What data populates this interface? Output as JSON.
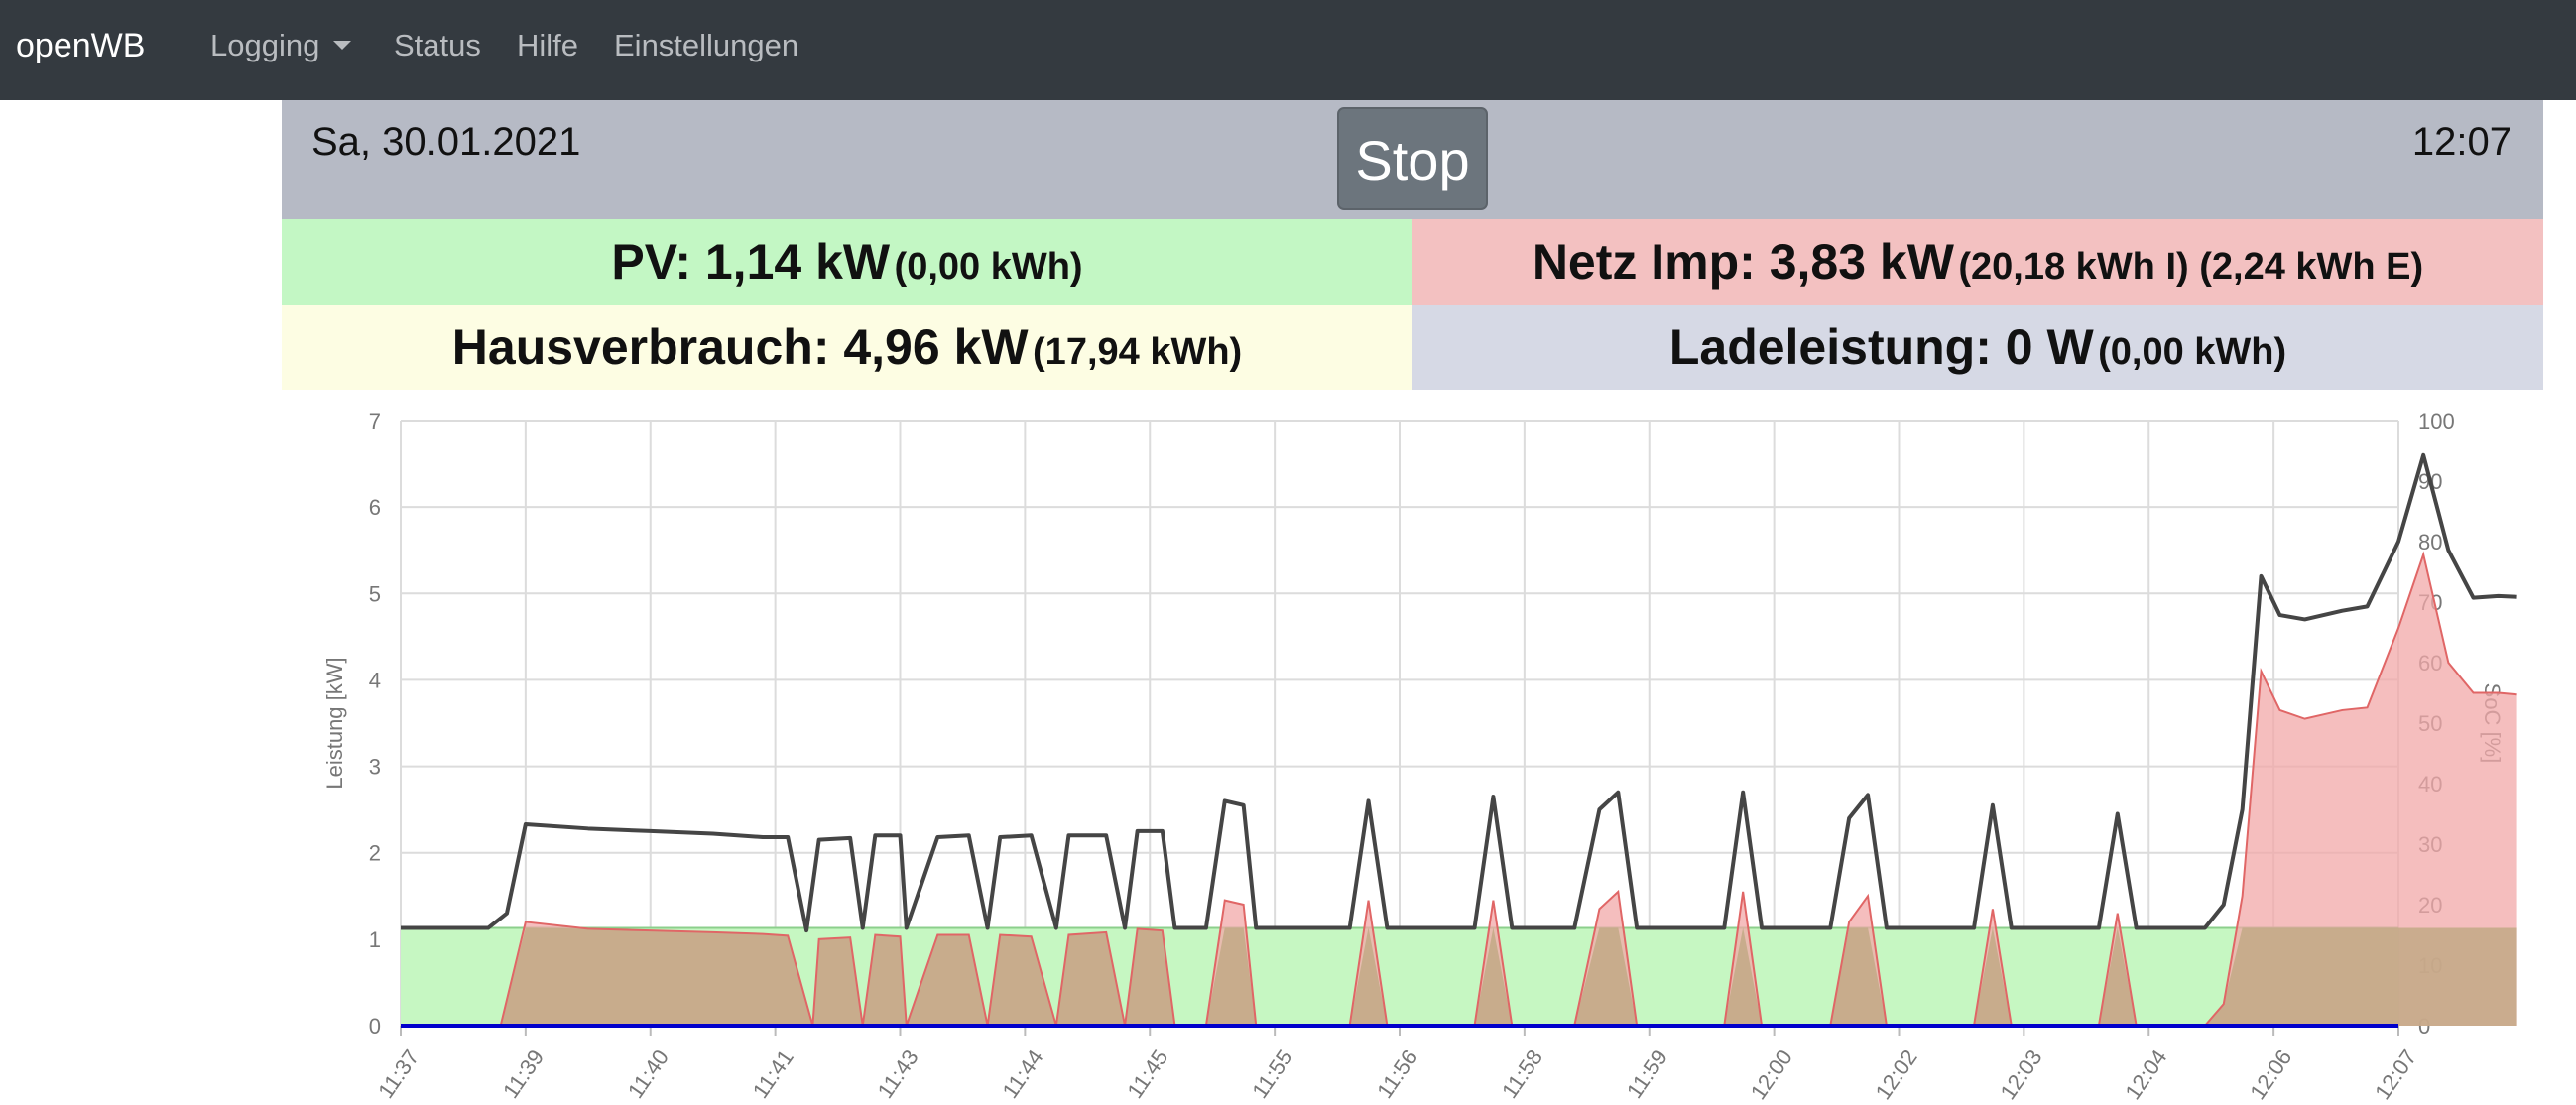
{
  "navbar": {
    "brand": "openWB",
    "items": [
      {
        "label": "Logging",
        "dropdown": true
      },
      {
        "label": "Status"
      },
      {
        "label": "Hilfe"
      },
      {
        "label": "Einstellungen"
      }
    ]
  },
  "header": {
    "date": "Sa, 30.01.2021",
    "time": "12:07",
    "stop_label": "Stop"
  },
  "tiles": {
    "pv": {
      "main": "PV: 1,14 kW",
      "sub": "(0,00 kWh)"
    },
    "netz": {
      "main": "Netz Imp: 3,83 kW",
      "sub": "(20,18 kWh I) (2,24 kWh E)"
    },
    "haus": {
      "main": "Hausverbrauch: 4,96 kW",
      "sub": "(17,94 kWh)"
    },
    "lade": {
      "main": "Ladeleistung: 0 W",
      "sub": "(0,00 kWh)"
    }
  },
  "colors": {
    "navbar": "#343a40",
    "pv_fill": "#c6f7c2",
    "grid_fill": "#f2a8a8",
    "grid_line": "#e06666",
    "overlap_fill": "#c2a986",
    "house_line": "#454545",
    "charge_line": "#0000cc"
  },
  "chart_data": {
    "type": "line",
    "ylabel": "Leistung [kW]",
    "y2label": "SoC [%]",
    "ylim": [
      0,
      7
    ],
    "y2lim": [
      0,
      100
    ],
    "yticks": [
      0,
      1,
      2,
      3,
      4,
      5,
      6,
      7
    ],
    "y2ticks": [
      0,
      10,
      20,
      30,
      40,
      50,
      60,
      70,
      80,
      90,
      100
    ],
    "x_ticks": [
      "11:37",
      "11:39",
      "11:40",
      "11:41",
      "11:43",
      "11:44",
      "11:45",
      "11:55",
      "11:56",
      "11:58",
      "11:59",
      "12:00",
      "12:02",
      "12:03",
      "12:04",
      "12:06",
      "12:07"
    ],
    "grid": true,
    "series": [
      {
        "name": "PV",
        "type": "area",
        "values": [
          1.13,
          1.13,
          1.13,
          1.13,
          1.13,
          1.13,
          1.13,
          1.13,
          1.13,
          1.13,
          1.13,
          1.13,
          1.13,
          1.13,
          1.13,
          1.13,
          1.13
        ]
      },
      {
        "name": "Netz",
        "type": "area",
        "points": [
          [
            0,
            0
          ],
          [
            0.8,
            0
          ],
          [
            1.0,
            1.2
          ],
          [
            1.5,
            1.12
          ],
          [
            2.0,
            1.1
          ],
          [
            2.5,
            1.08
          ],
          [
            2.9,
            1.06
          ],
          [
            3.1,
            1.04
          ],
          [
            3.3,
            0
          ],
          [
            3.35,
            1.0
          ],
          [
            3.6,
            1.02
          ],
          [
            3.7,
            0
          ],
          [
            3.8,
            1.05
          ],
          [
            4.0,
            1.03
          ],
          [
            4.05,
            0
          ],
          [
            4.3,
            1.05
          ],
          [
            4.55,
            1.05
          ],
          [
            4.7,
            0
          ],
          [
            4.8,
            1.05
          ],
          [
            5.05,
            1.03
          ],
          [
            5.25,
            0
          ],
          [
            5.35,
            1.05
          ],
          [
            5.65,
            1.08
          ],
          [
            5.8,
            0
          ],
          [
            5.9,
            1.12
          ],
          [
            6.1,
            1.1
          ],
          [
            6.2,
            0
          ],
          [
            6.45,
            0
          ],
          [
            6.6,
            1.45
          ],
          [
            6.75,
            1.4
          ],
          [
            6.85,
            0
          ],
          [
            7.6,
            0
          ],
          [
            7.75,
            1.45
          ],
          [
            7.9,
            0
          ],
          [
            8.6,
            0
          ],
          [
            8.75,
            1.45
          ],
          [
            8.9,
            0
          ],
          [
            9.4,
            0
          ],
          [
            9.6,
            1.35
          ],
          [
            9.75,
            1.55
          ],
          [
            9.9,
            0
          ],
          [
            10.6,
            0
          ],
          [
            10.75,
            1.55
          ],
          [
            10.9,
            0
          ],
          [
            11.45,
            0
          ],
          [
            11.6,
            1.2
          ],
          [
            11.75,
            1.5
          ],
          [
            11.9,
            0
          ],
          [
            12.6,
            0
          ],
          [
            12.75,
            1.35
          ],
          [
            12.9,
            0
          ],
          [
            13.6,
            0
          ],
          [
            13.75,
            1.3
          ],
          [
            13.9,
            0
          ],
          [
            14.45,
            0
          ],
          [
            14.6,
            0.25
          ],
          [
            14.75,
            1.5
          ],
          [
            14.9,
            4.1
          ],
          [
            15.05,
            3.65
          ],
          [
            15.25,
            3.55
          ],
          [
            15.55,
            3.65
          ],
          [
            15.75,
            3.68
          ],
          [
            16.0,
            4.6
          ],
          [
            16.2,
            5.45
          ],
          [
            16.4,
            4.2
          ],
          [
            16.6,
            3.85
          ],
          [
            16.8,
            3.85
          ],
          [
            16.95,
            3.83
          ]
        ]
      },
      {
        "name": "Hausverbrauch",
        "type": "line",
        "points": [
          [
            0,
            1.13
          ],
          [
            0.7,
            1.13
          ],
          [
            0.85,
            1.3
          ],
          [
            1.0,
            2.33
          ],
          [
            1.5,
            2.28
          ],
          [
            2.0,
            2.25
          ],
          [
            2.5,
            2.22
          ],
          [
            2.9,
            2.18
          ],
          [
            3.1,
            2.18
          ],
          [
            3.25,
            1.1
          ],
          [
            3.35,
            2.15
          ],
          [
            3.6,
            2.17
          ],
          [
            3.7,
            1.13
          ],
          [
            3.8,
            2.2
          ],
          [
            4.0,
            2.2
          ],
          [
            4.05,
            1.13
          ],
          [
            4.3,
            2.18
          ],
          [
            4.55,
            2.2
          ],
          [
            4.7,
            1.13
          ],
          [
            4.8,
            2.18
          ],
          [
            5.05,
            2.2
          ],
          [
            5.25,
            1.13
          ],
          [
            5.35,
            2.2
          ],
          [
            5.65,
            2.2
          ],
          [
            5.8,
            1.13
          ],
          [
            5.9,
            2.25
          ],
          [
            6.1,
            2.25
          ],
          [
            6.2,
            1.13
          ],
          [
            6.45,
            1.13
          ],
          [
            6.6,
            2.6
          ],
          [
            6.75,
            2.55
          ],
          [
            6.85,
            1.13
          ],
          [
            7.6,
            1.13
          ],
          [
            7.75,
            2.6
          ],
          [
            7.9,
            1.13
          ],
          [
            8.6,
            1.13
          ],
          [
            8.75,
            2.65
          ],
          [
            8.9,
            1.13
          ],
          [
            9.4,
            1.13
          ],
          [
            9.6,
            2.5
          ],
          [
            9.75,
            2.7
          ],
          [
            9.9,
            1.13
          ],
          [
            10.6,
            1.13
          ],
          [
            10.75,
            2.7
          ],
          [
            10.9,
            1.13
          ],
          [
            11.45,
            1.13
          ],
          [
            11.6,
            2.4
          ],
          [
            11.75,
            2.67
          ],
          [
            11.9,
            1.13
          ],
          [
            12.6,
            1.13
          ],
          [
            12.75,
            2.55
          ],
          [
            12.9,
            1.13
          ],
          [
            13.6,
            1.13
          ],
          [
            13.75,
            2.45
          ],
          [
            13.9,
            1.13
          ],
          [
            14.45,
            1.13
          ],
          [
            14.6,
            1.4
          ],
          [
            14.75,
            2.5
          ],
          [
            14.9,
            5.2
          ],
          [
            15.05,
            4.75
          ],
          [
            15.25,
            4.7
          ],
          [
            15.55,
            4.8
          ],
          [
            15.75,
            4.85
          ],
          [
            16.0,
            5.6
          ],
          [
            16.2,
            6.6
          ],
          [
            16.4,
            5.5
          ],
          [
            16.6,
            4.95
          ],
          [
            16.8,
            4.97
          ],
          [
            16.95,
            4.96
          ]
        ]
      },
      {
        "name": "Ladeleistung",
        "type": "line",
        "values": [
          0,
          0
        ]
      }
    ]
  }
}
